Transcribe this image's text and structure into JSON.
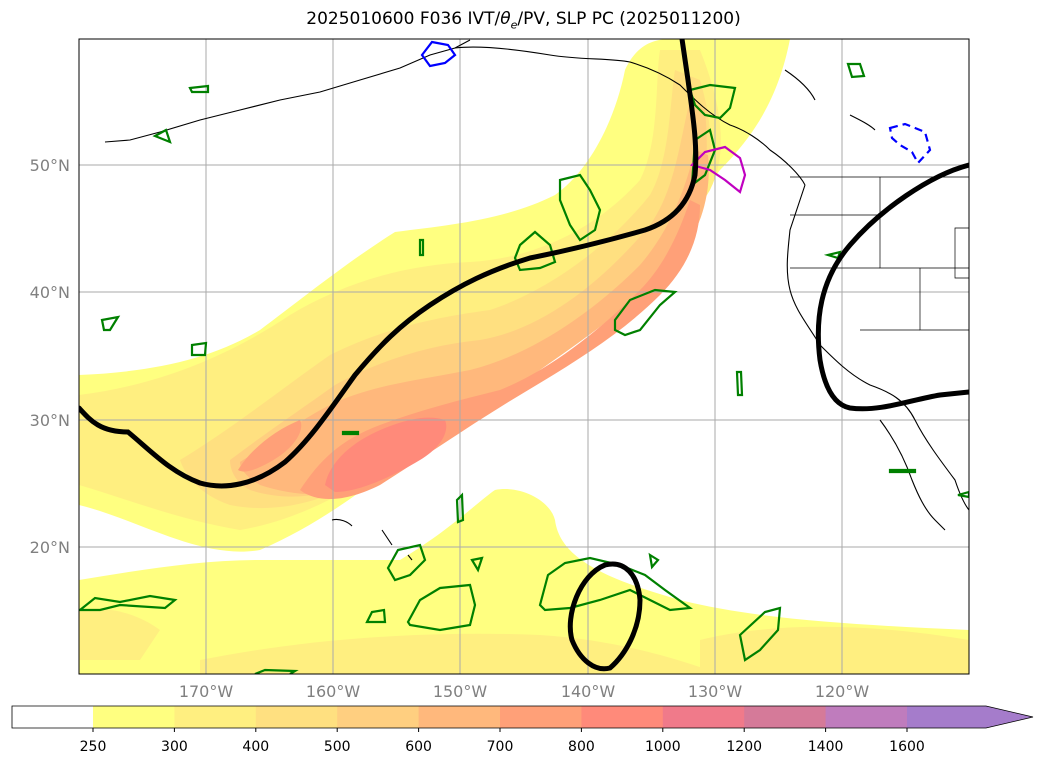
{
  "title_main": "2025010600 F036 IVT/",
  "title_theta": "θ",
  "title_sub": "e",
  "title_tail": "/PV, SLP PC (2025011200)",
  "lat_labels": [
    "50°N",
    "40°N",
    "30°N",
    "20°N"
  ],
  "lon_labels": [
    "170°W",
    "160°W",
    "150°W",
    "140°W",
    "130°W",
    "120°W"
  ],
  "colorbar": {
    "ticks": [
      "250",
      "300",
      "400",
      "500",
      "600",
      "700",
      "800",
      "1000",
      "1200",
      "1400",
      "1600"
    ],
    "colors": [
      "#ffff80",
      "#ffef80",
      "#ffe080",
      "#ffcf80",
      "#ffb87c",
      "#ffa078",
      "#ff8a7a",
      "#f07a8a",
      "#d57a99",
      "#bf7cbd",
      "#a57ccb"
    ]
  },
  "contour_colors": {
    "slp": "#000000",
    "pv_positive": "#008000",
    "pv_cold": "#0000ff",
    "theta_e": "#c000c0"
  }
}
